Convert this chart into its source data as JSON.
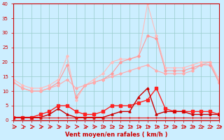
{
  "x": [
    0,
    1,
    2,
    3,
    4,
    5,
    6,
    7,
    8,
    9,
    10,
    11,
    12,
    13,
    14,
    15,
    16,
    17,
    18,
    19,
    20,
    21,
    22,
    23
  ],
  "line_rafales": [
    14,
    12,
    11,
    11,
    12,
    14,
    22,
    7,
    12,
    14,
    16,
    20,
    21,
    21,
    22,
    40,
    29,
    18,
    18,
    18,
    19,
    20,
    20,
    14
  ],
  "line_moy1": [
    13,
    11,
    10,
    10,
    11,
    13,
    19,
    8,
    12,
    13,
    14,
    16,
    20,
    21,
    22,
    29,
    28,
    17,
    17,
    17,
    18,
    19,
    19,
    13
  ],
  "line_moy2": [
    13,
    11,
    10,
    10,
    11,
    12,
    14,
    11,
    12,
    13,
    14,
    15,
    16,
    17,
    18,
    19,
    17,
    16,
    16,
    16,
    17,
    19,
    20,
    13
  ],
  "line_dark1": [
    1,
    1,
    1,
    2,
    3,
    5,
    5,
    3,
    2,
    2,
    3,
    5,
    5,
    5,
    6,
    7,
    11,
    4,
    3,
    3,
    3,
    3,
    3,
    2
  ],
  "line_dark2": [
    1,
    1,
    1,
    1,
    2,
    4,
    2,
    1,
    1,
    1,
    1,
    2,
    3,
    3,
    8,
    11,
    2,
    3,
    3,
    3,
    2,
    2,
    2,
    2
  ],
  "line_dark3": [
    1,
    1,
    1,
    1,
    1,
    1,
    1,
    1,
    1,
    1,
    1,
    1,
    1,
    1,
    1,
    1,
    1,
    1,
    1,
    1,
    1,
    1,
    1,
    1
  ],
  "bg_color": "#cceeff",
  "grid_color": "#99cccc",
  "color_light1": "#ffbbbb",
  "color_light2": "#ff9999",
  "color_light3": "#ffaaaa",
  "color_dark1": "#ff2222",
  "color_dark2": "#cc0000",
  "color_dark3": "#ee1111",
  "xlabel": "Vent moyen/en rafales ( km/h )",
  "ylim": [
    0,
    40
  ],
  "xlim": [
    0,
    23
  ],
  "yticks": [
    0,
    5,
    10,
    15,
    20,
    25,
    30,
    35,
    40
  ],
  "xticks": [
    0,
    1,
    2,
    3,
    4,
    5,
    6,
    7,
    8,
    9,
    10,
    11,
    12,
    13,
    14,
    15,
    16,
    17,
    18,
    19,
    20,
    21,
    22,
    23
  ]
}
